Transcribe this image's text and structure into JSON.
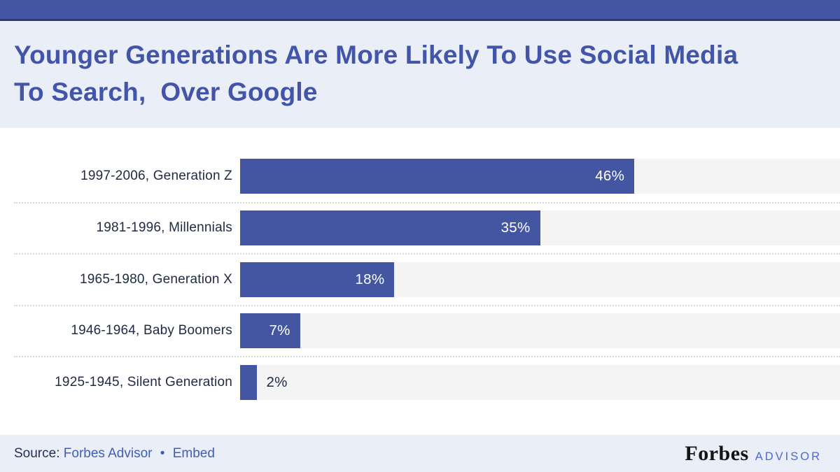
{
  "header": {
    "title_line1": "Younger Generations Are More Likely To Use Social Media",
    "title_line2": "To Search,  Over Google"
  },
  "chart_data": {
    "type": "bar",
    "orientation": "horizontal",
    "title": "Younger Generations Are More Likely To Use Social Media To Search, Over Google",
    "categories": [
      "1997-2006, Generation Z",
      "1981-1996, Millennials",
      "1965-1980, Generation X",
      "1946-1964, Baby Boomers",
      "1925-1945, Silent Generation"
    ],
    "values": [
      46,
      35,
      18,
      7,
      2
    ],
    "value_labels": [
      "46%",
      "35%",
      "18%",
      "7%",
      "2%"
    ],
    "xlabel": "",
    "ylabel": "",
    "xlim": [
      0,
      70
    ],
    "grid": false,
    "legend": false,
    "bar_color": "#4456a2",
    "track_color": "#f4f4f5",
    "value_label_color_inside": "#ffffff",
    "value_label_color_outside": "#222b44"
  },
  "footer": {
    "source_prefix": "Source:",
    "source_link": "Forbes Advisor",
    "separator": "•",
    "embed_link": "Embed",
    "brand_forbes": "Forbes",
    "brand_advisor": "ADVISOR"
  }
}
